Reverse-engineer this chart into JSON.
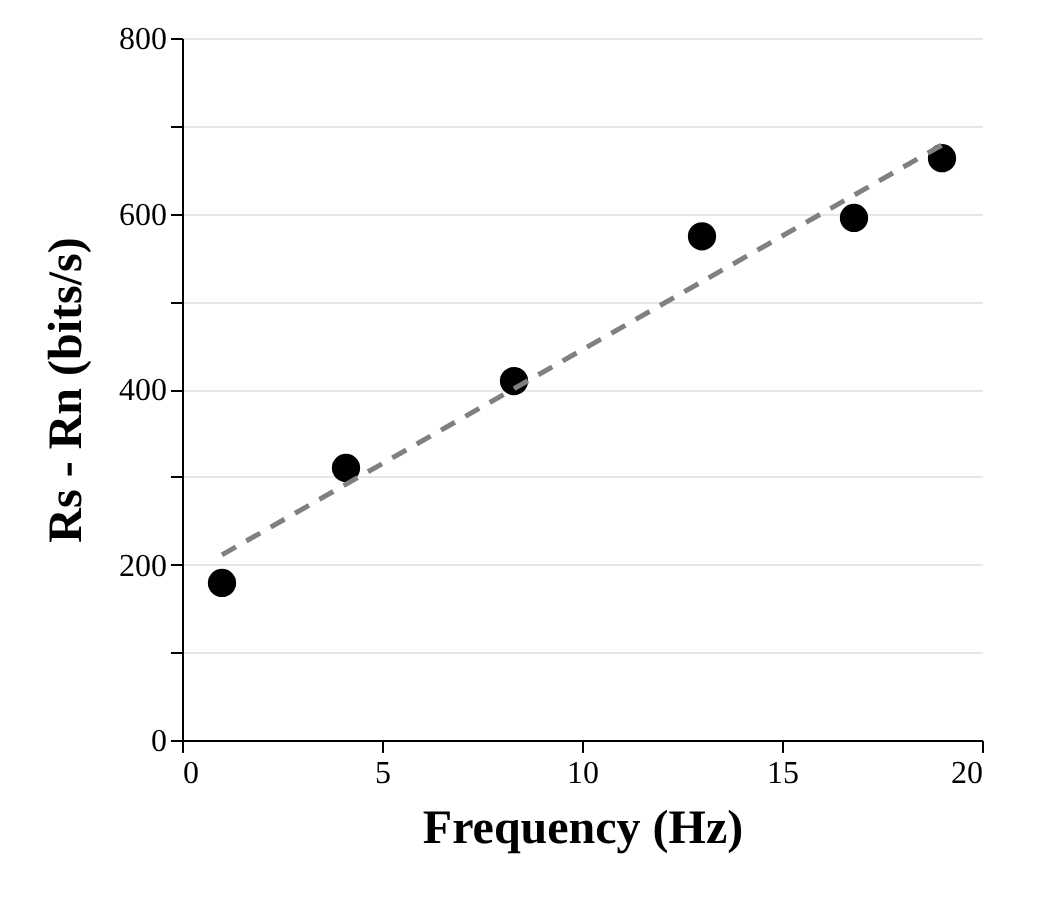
{
  "chart_data": {
    "type": "scatter",
    "xlabel": "Frequency (Hz)",
    "ylabel": "Rs - Rn (bits/s)",
    "xlim": [
      0,
      20
    ],
    "xticks": [
      0,
      5,
      10,
      15,
      20
    ],
    "ylim": [
      0,
      800
    ],
    "yticks": [
      0,
      {
        "value": 100,
        "label": null
      },
      200,
      {
        "value": 300,
        "label": null
      },
      400,
      {
        "value": 500,
        "label": null
      },
      600,
      {
        "value": 700,
        "label": null
      },
      800
    ],
    "grid": "y",
    "marker": "circle",
    "series": [
      {
        "color": "#000000",
        "x": [
          1.0,
          4.1,
          8.3,
          13.0,
          16.8,
          19.0
        ],
        "values": [
          179,
          310,
          409,
          574,
          595,
          663
        ]
      },
      {
        "type": "line",
        "color": "#808080",
        "line_style": "dashed",
        "marker": "none",
        "x": [
          1,
          19
        ],
        "values": [
          211,
          678
        ]
      }
    ]
  }
}
